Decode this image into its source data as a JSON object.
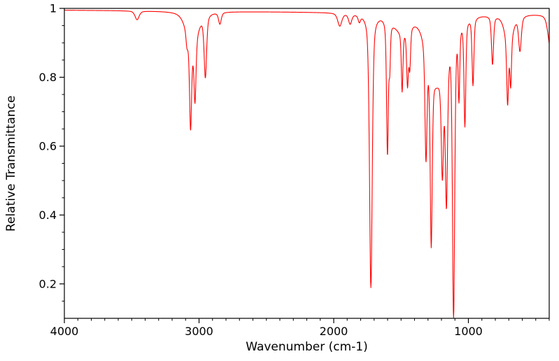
{
  "figure": {
    "background": "#ffffff",
    "axis_color": "#000000"
  },
  "chart_data": {
    "type": "line",
    "title": "",
    "xlabel": "Wavenumber (cm-1)",
    "ylabel": "Relative Transmittance",
    "line_color": "#ff0000",
    "grid": false,
    "legend": "none",
    "x_axis": {
      "min": 400,
      "max": 4000,
      "reversed": true,
      "major_ticks": [
        4000,
        3000,
        2000,
        1000
      ],
      "major_tick_labels": [
        "4000",
        "3000",
        "2000",
        "1000"
      ],
      "minor_tick_step": 100
    },
    "y_axis": {
      "min": 0.1,
      "max": 1.0,
      "major_ticks": [
        0.2,
        0.4,
        0.6,
        0.8,
        1
      ],
      "major_tick_labels": [
        "0.2",
        "0.4",
        "0.6",
        "0.8",
        "1"
      ],
      "minor_tick_step": 0.05
    },
    "baseline": {
      "left": 0.995,
      "right": 0.985
    },
    "peaks": [
      {
        "wavenumber_cm1": 3460,
        "transmittance_min": 0.968,
        "width_cm1": 18
      },
      {
        "wavenumber_cm1": 3090,
        "transmittance_min": 0.956,
        "width_cm1": 8
      },
      {
        "wavenumber_cm1": 3063,
        "transmittance_min": 0.738,
        "width_cm1": 9
      },
      {
        "wavenumber_cm1": 3052,
        "transmittance_min": 0.905,
        "width_cm1": 50
      },
      {
        "wavenumber_cm1": 3030,
        "transmittance_min": 0.81,
        "width_cm1": 9
      },
      {
        "wavenumber_cm1": 2953,
        "transmittance_min": 0.812,
        "width_cm1": 11
      },
      {
        "wavenumber_cm1": 2845,
        "transmittance_min": 0.958,
        "width_cm1": 12
      },
      {
        "wavenumber_cm1": 1955,
        "transmittance_min": 0.952,
        "width_cm1": 18
      },
      {
        "wavenumber_cm1": 1878,
        "transmittance_min": 0.96,
        "width_cm1": 14
      },
      {
        "wavenumber_cm1": 1810,
        "transmittance_min": 0.97,
        "width_cm1": 10
      },
      {
        "wavenumber_cm1": 1724,
        "transmittance_min": 0.195,
        "width_cm1": 12
      },
      {
        "wavenumber_cm1": 1601,
        "transmittance_min": 0.6,
        "width_cm1": 8
      },
      {
        "wavenumber_cm1": 1584,
        "transmittance_min": 0.87,
        "width_cm1": 6
      },
      {
        "wavenumber_cm1": 1500,
        "transmittance_min": 0.945,
        "width_cm1": 70
      },
      {
        "wavenumber_cm1": 1492,
        "transmittance_min": 0.815,
        "width_cm1": 7
      },
      {
        "wavenumber_cm1": 1452,
        "transmittance_min": 0.825,
        "width_cm1": 8
      },
      {
        "wavenumber_cm1": 1435,
        "transmittance_min": 0.875,
        "width_cm1": 7
      },
      {
        "wavenumber_cm1": 1315,
        "transmittance_min": 0.66,
        "width_cm1": 9
      },
      {
        "wavenumber_cm1": 1276,
        "transmittance_min": 0.47,
        "width_cm1": 9
      },
      {
        "wavenumber_cm1": 1235,
        "transmittance_min": 0.8,
        "width_cm1": 75
      },
      {
        "wavenumber_cm1": 1193,
        "transmittance_min": 0.68,
        "width_cm1": 10
      },
      {
        "wavenumber_cm1": 1163,
        "transmittance_min": 0.55,
        "width_cm1": 10
      },
      {
        "wavenumber_cm1": 1110,
        "transmittance_min": 0.15,
        "width_cm1": 10
      },
      {
        "wavenumber_cm1": 1070,
        "transmittance_min": 0.78,
        "width_cm1": 7
      },
      {
        "wavenumber_cm1": 1026,
        "transmittance_min": 0.68,
        "width_cm1": 8
      },
      {
        "wavenumber_cm1": 966,
        "transmittance_min": 0.79,
        "width_cm1": 8
      },
      {
        "wavenumber_cm1": 821,
        "transmittance_min": 0.845,
        "width_cm1": 9
      },
      {
        "wavenumber_cm1": 709,
        "transmittance_min": 0.8,
        "width_cm1": 8
      },
      {
        "wavenumber_cm1": 700,
        "transmittance_min": 0.91,
        "width_cm1": 35
      },
      {
        "wavenumber_cm1": 686,
        "transmittance_min": 0.85,
        "width_cm1": 7
      },
      {
        "wavenumber_cm1": 617,
        "transmittance_min": 0.885,
        "width_cm1": 12
      },
      {
        "wavenumber_cm1": 390,
        "transmittance_min": 0.885,
        "width_cm1": 22
      }
    ]
  }
}
